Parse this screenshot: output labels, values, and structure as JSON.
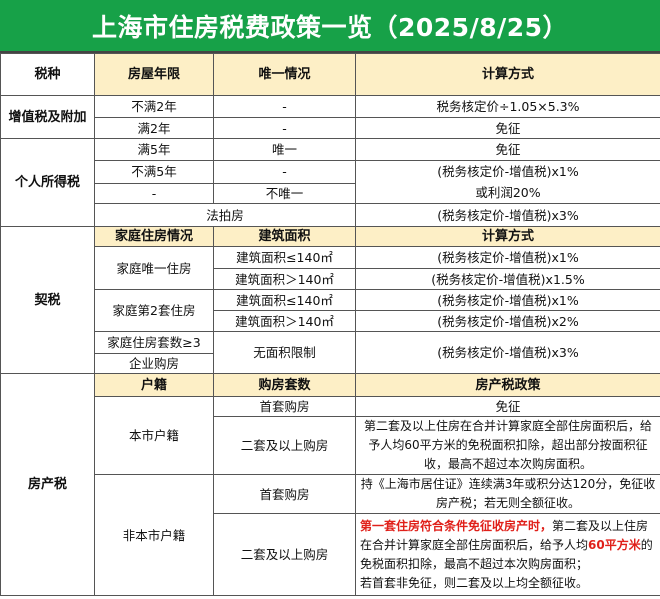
{
  "title": "上海市住房税费政策一览（2025/8/25）",
  "colors": {
    "title_bg": "#17a148",
    "header_bg": "#fdefc6",
    "highlight": "#e0201a"
  },
  "section1": {
    "headers": [
      "税种",
      "房屋年限",
      "唯一情况",
      "计算方式"
    ],
    "vat": {
      "name": "增值税及附加",
      "rows": [
        [
          "不满2年",
          "-",
          "税务核定价÷1.05×5.3%"
        ],
        [
          "满2年",
          "-",
          "免征"
        ]
      ]
    },
    "income": {
      "name": "个人所得税",
      "rows": [
        [
          "满5年",
          "唯一",
          "免征"
        ],
        [
          "不满5年",
          "-"
        ],
        [
          "-",
          "不唯一"
        ]
      ],
      "formula_lines": [
        "(税务核定价-增值税)x1%",
        "或利润20%"
      ],
      "auction": "法拍房",
      "auction_formula": "(税务核定价-增值税)x3%"
    }
  },
  "deed": {
    "name": "契税",
    "headers": [
      "家庭住房情况",
      "建筑面积",
      "计算方式"
    ],
    "only_home": "家庭唯一住房",
    "second_home": "家庭第2套住房",
    "rows": [
      [
        "建筑面积≤140㎡",
        "(税务核定价-增值税)x1%"
      ],
      [
        "建筑面积＞140㎡",
        "(税务核定价-增值税)x1.5%"
      ],
      [
        "建筑面积≤140㎡",
        "(税务核定价-增值税)x1%"
      ],
      [
        "建筑面积＞140㎡",
        "(税务核定价-增值税)x2%"
      ]
    ],
    "third": "家庭住房套数≥3",
    "company": "企业购房",
    "no_limit": "无面积限制",
    "no_limit_formula": "(税务核定价-增值税)x3%"
  },
  "property": {
    "name": "房产税",
    "headers": [
      "户籍",
      "购房套数",
      "房产税政策"
    ],
    "local": {
      "name": "本市户籍",
      "first": "首套购房",
      "first_policy": "免征",
      "second": "二套及以上购房",
      "second_policy": "第二套及以上住房在合并计算家庭全部住房面积后，给予人均60平方米的免税面积扣除，超出部分按面积征收，最高不超过本次购房面积。"
    },
    "nonlocal": {
      "name": "非本市户籍",
      "first": "首套购房",
      "first_policy": "持《上海市居住证》连续满3年或积分达120分，免征收房产税；若无则全额征收。",
      "second": "二套及以上购房",
      "second_policy": {
        "red1": "第一套住房符合条件免征收房产时，",
        "text1": "第二套及以上住房在合并计算家庭全部住房面积后，给予人均",
        "red2": "60平方米",
        "text2": "的免税面积扣除，最高不超过本次购房面积；",
        "text3": "若首套非免征，则二套及以上均全额征收。"
      }
    }
  }
}
